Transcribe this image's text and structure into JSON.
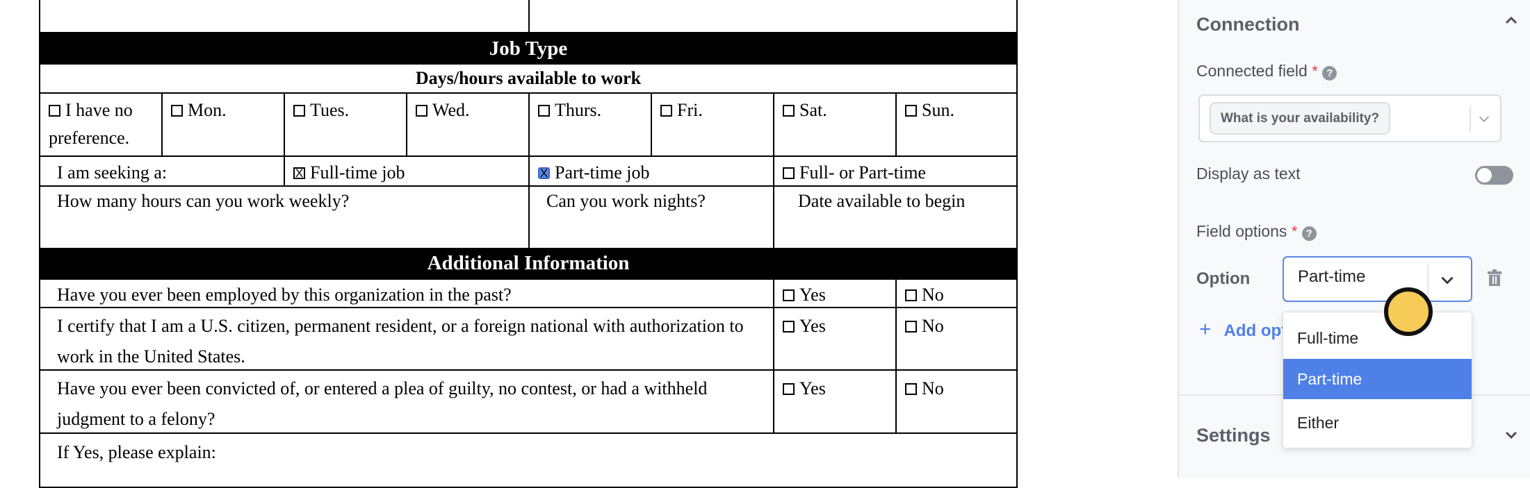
{
  "form": {
    "job_type_header": "Job Type",
    "days_header": "Days/hours available to work",
    "days": [
      {
        "label": "I have no preference.",
        "checked": false
      },
      {
        "label": "Mon.",
        "checked": false
      },
      {
        "label": "Tues.",
        "checked": false
      },
      {
        "label": "Wed.",
        "checked": false
      },
      {
        "label": "Thurs.",
        "checked": false
      },
      {
        "label": "Fri.",
        "checked": false
      },
      {
        "label": "Sat.",
        "checked": false
      },
      {
        "label": "Sun.",
        "checked": false
      }
    ],
    "seeking_label": "I am seeking a:",
    "seeking_options": [
      {
        "label": "Full-time job",
        "checked": true
      },
      {
        "label": "Part-time job",
        "checked": true,
        "highlighted": true
      },
      {
        "label": "Full- or Part-time",
        "checked": false
      }
    ],
    "hours_question": "How many hours can you work weekly?",
    "nights_question": "Can you work nights?",
    "date_question": "Date available to begin",
    "additional_header": "Additional Information",
    "questions": [
      {
        "text": "Have you ever been employed by this organization in the past?",
        "yes": "Yes",
        "no": "No"
      },
      {
        "text": "I certify that I am a U.S. citizen, permanent resident, or a foreign national with authorization to work in the United States.",
        "yes": "Yes",
        "no": "No"
      },
      {
        "text": "Have you ever been convicted of, or entered a plea of guilty, no contest, or had a withheld judgment to a felony?",
        "yes": "Yes",
        "no": "No"
      }
    ],
    "explain_label": "If Yes, please explain:"
  },
  "panel": {
    "connection_title": "Connection",
    "connected_field_label": "Connected field",
    "required_mark": "*",
    "help_glyph": "?",
    "connected_field_value": "What is your availability?",
    "display_as_text_label": "Display as text",
    "display_as_text_on": false,
    "field_options_label": "Field options",
    "option_label": "Option",
    "option_value": "Part-time",
    "add_option_label": "Add option",
    "add_option_visible": "Add op",
    "dropdown_options": [
      "Full-time",
      "Part-time",
      "Either"
    ],
    "dropdown_selected": "Part-time",
    "settings_title": "Settings",
    "accent_color": "#4f80e8"
  }
}
